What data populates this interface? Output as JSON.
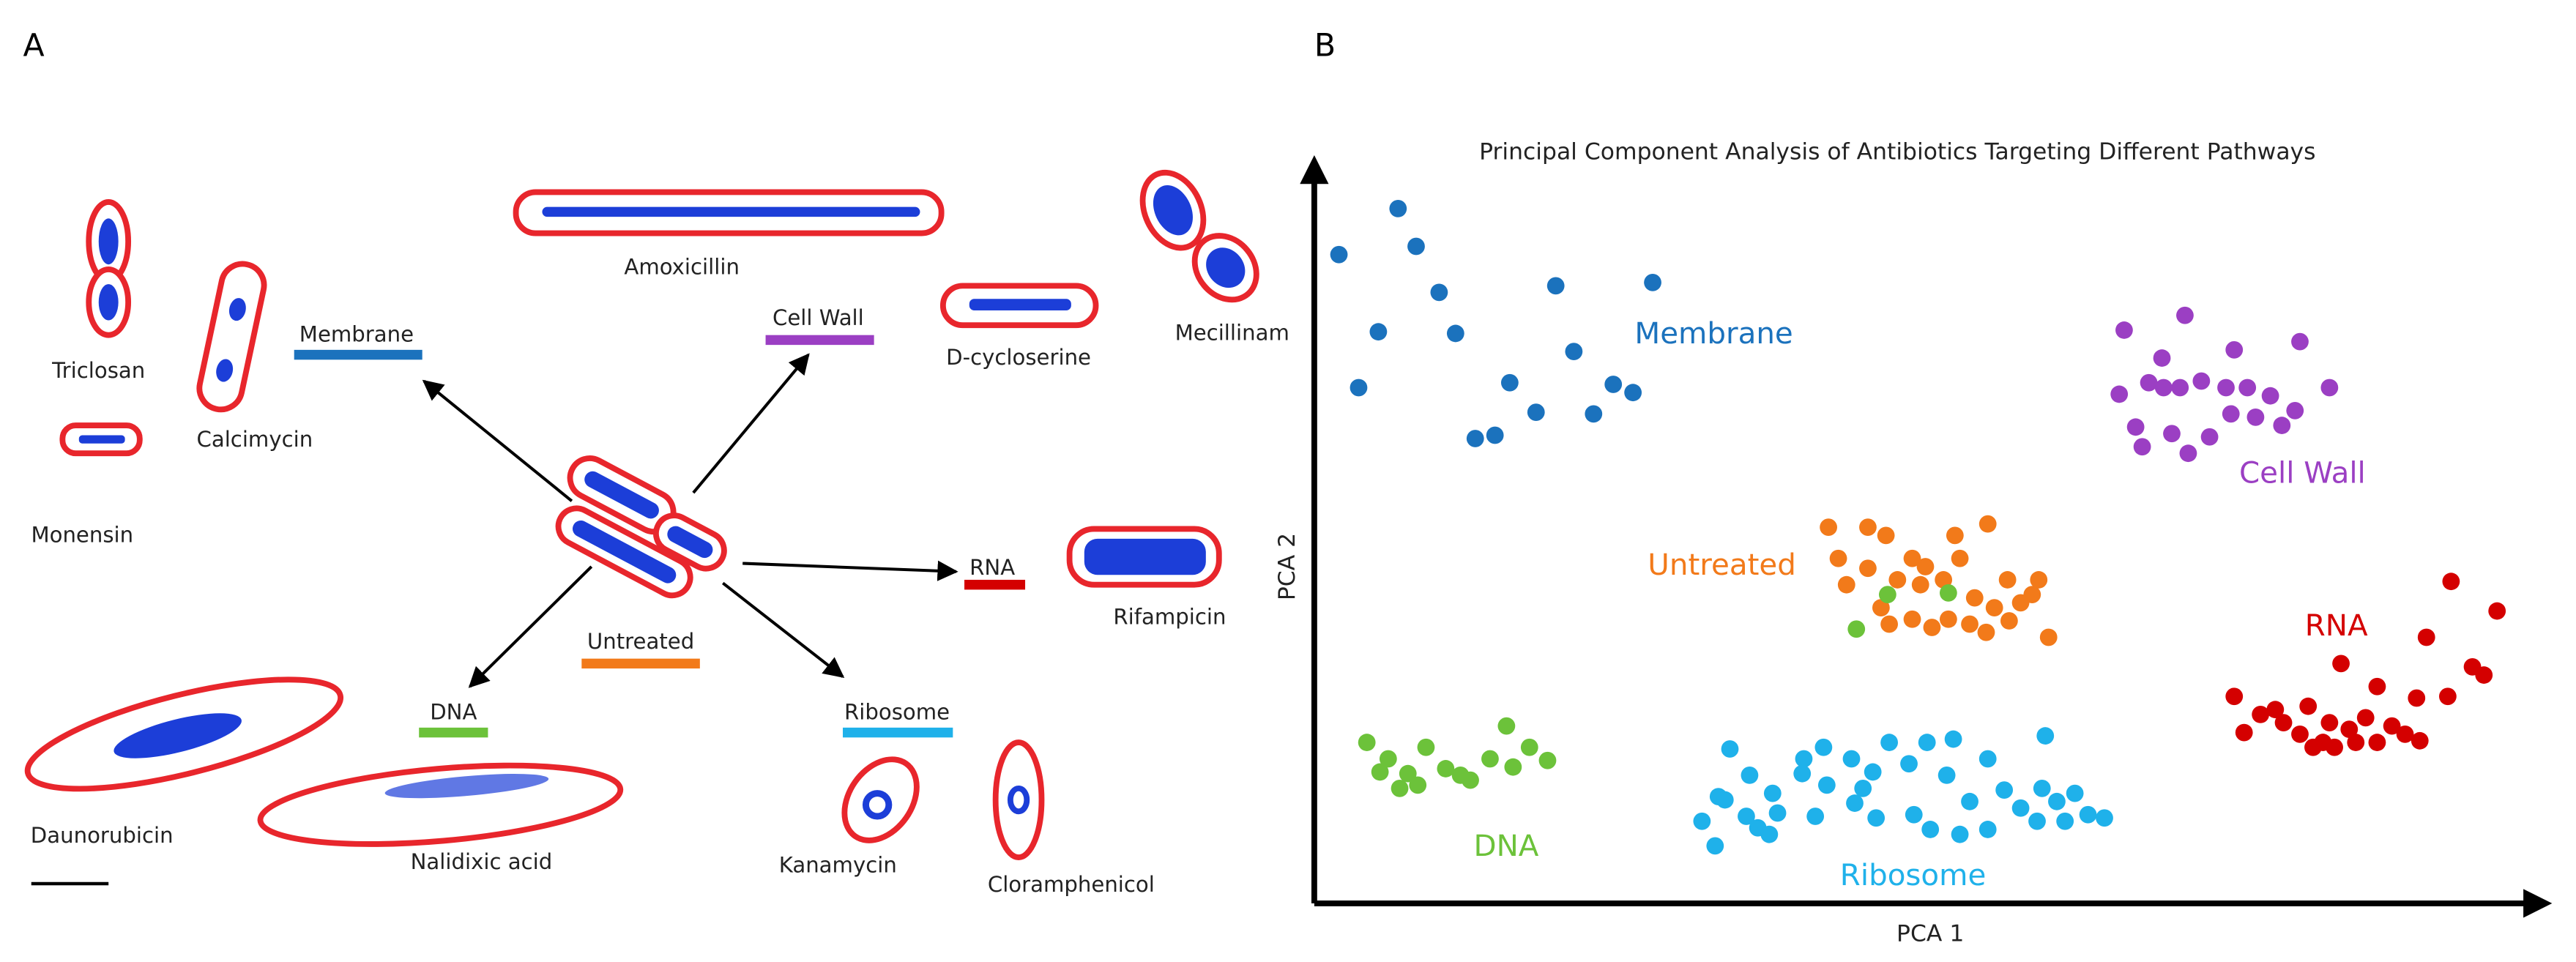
{
  "panel_a": {
    "label": "A",
    "drugs": [
      "Triclosan",
      "Calcimycin",
      "Monensin",
      "Amoxicillin",
      "D-cycloserine",
      "Mecillinam",
      "Rifampicin",
      "Daunorubicin",
      "Nalidixic acid",
      "Kanamycin",
      "Cloramphenicol"
    ],
    "pathways": [
      "Membrane",
      "Cell Wall",
      "RNA",
      "Untreated",
      "DNA",
      "Ribosome"
    ]
  },
  "panel_b": {
    "label": "B"
  },
  "chart_data": {
    "type": "scatter",
    "title": "Principal Component Analysis of Antibiotics Targeting Different Pathways",
    "x_label": "PCA 1",
    "y_label": "PCA 2",
    "xlim": [
      0,
      740
    ],
    "ylim": [
      0,
      453
    ],
    "series": [
      {
        "name": "Membrane",
        "color": "#1b72bd",
        "x": [
          15,
          51,
          62,
          76,
          39,
          86,
          27,
          147,
          206,
          158,
          119,
          135,
          98,
          110,
          182,
          194,
          170
        ],
        "y": [
          393,
          421,
          398,
          370,
          346,
          345,
          312,
          374,
          376,
          334,
          315,
          297,
          281,
          283,
          314,
          309,
          296
        ]
      },
      {
        "name": "Cell Wall",
        "color": "#9b3fc3",
        "x": [
          493,
          530,
          516,
          560,
          600,
          490,
          508,
          527,
          540,
          555,
          568,
          582,
          597,
          618,
          500,
          522,
          545,
          558,
          573,
          589,
          504,
          532,
          517
        ],
        "y": [
          347,
          356,
          330,
          335,
          340,
          308,
          315,
          312,
          316,
          312,
          312,
          307,
          298,
          312,
          288,
          284,
          282,
          296,
          294,
          289,
          276,
          272,
          312
        ]
      },
      {
        "name": "Untreated",
        "color": "#f27a1a",
        "x": [
          313,
          337,
          348,
          410,
          390,
          319,
          337,
          364,
          372,
          393,
          422,
          441,
          324,
          355,
          369,
          383,
          345,
          402,
          414,
          430,
          437,
          350,
          364,
          376,
          386,
          399,
          409,
          423,
          447
        ],
        "y": [
          227,
          227,
          222,
          229,
          222,
          208,
          202,
          208,
          203,
          208,
          195,
          195,
          192,
          195,
          192,
          195,
          178,
          184,
          178,
          181,
          186,
          168,
          171,
          166,
          171,
          168,
          163,
          170,
          160
        ]
      },
      {
        "name": "DNA",
        "color": "#6cc23a",
        "x": [
          32,
          45,
          68,
          80,
          40,
          57,
          89,
          107,
          117,
          131,
          142,
          52,
          63,
          95,
          121,
          349,
          386,
          330
        ],
        "y": [
          96,
          86,
          93,
          80,
          78,
          77,
          76,
          86,
          106,
          93,
          85,
          68,
          70,
          73,
          81,
          186,
          187,
          165
        ]
      },
      {
        "name": "RNA",
        "color": "#d40000",
        "x": [
          692,
          720,
          677,
          705,
          712,
          625,
          647,
          560,
          585,
          605,
          671,
          690,
          566,
          576,
          590,
          600,
          618,
          630,
          640,
          656,
          664,
          673,
          614,
          647,
          621,
          634,
          608
        ],
        "y": [
          194,
          176,
          160,
          142,
          137,
          144,
          130,
          124,
          116,
          118,
          123,
          124,
          102,
          113,
          108,
          101,
          108,
          104,
          111,
          106,
          101,
          97,
          96,
          96,
          93,
          96,
          93
        ]
      },
      {
        "name": "Ribosome",
        "color": "#1fb1ea",
        "x": [
          253,
          310,
          350,
          373,
          389,
          445,
          298,
          327,
          362,
          410,
          340,
          265,
          297,
          312,
          334,
          385,
          246,
          279,
          329,
          420,
          443,
          452,
          463,
          236,
          263,
          282,
          305,
          365,
          399,
          430,
          471,
          481,
          250,
          270,
          277,
          342,
          375,
          393,
          410,
          244,
          440,
          457
        ],
        "y": [
          92,
          93,
          96,
          96,
          98,
          100,
          86,
          86,
          83,
          86,
          78,
          76,
          77,
          70,
          68,
          76,
          63,
          65,
          59,
          67,
          68,
          60,
          65,
          48,
          51,
          53,
          51,
          52,
          60,
          56,
          52,
          50,
          61,
          44,
          40,
          50,
          43,
          40,
          43,
          33,
          48,
          48
        ]
      }
    ]
  }
}
